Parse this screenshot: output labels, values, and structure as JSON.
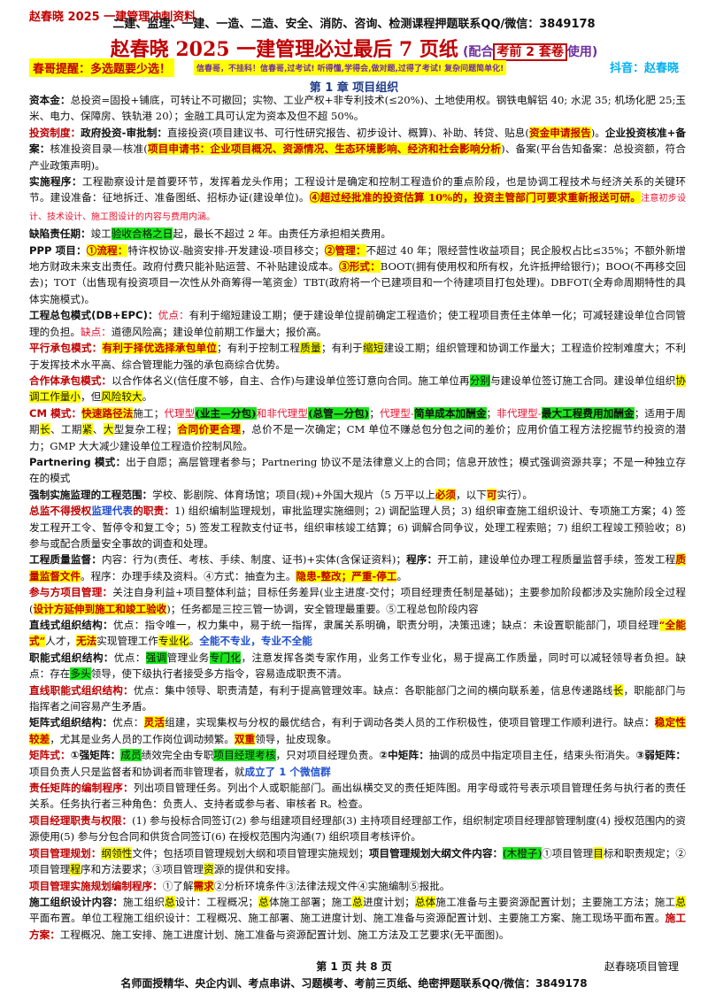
{
  "header": {
    "brand": "赵春晓 2025 一建管理冲刺资料",
    "banner": "二建、监理、一建、一造、二造、安全、消防、咨询、检测课程押题联系QQ/微信：3849178",
    "title": "赵春晓 2025 一建管理必过最后 7 页纸",
    "title_note_pre": "(配合",
    "title_note_box": "考前 2 套卷",
    "title_note_post": "使用)",
    "tip": "春哥提醒：多选题要少选！",
    "slogan": "信春哥，不挂科！信春哥,过考试! 听得懂,学得会,做对题,过得了考试! 复杂问题简单化!",
    "douyin": "抖音：赵春晓",
    "chapter": "第 1 章      项目组织"
  },
  "paras": [
    [
      [
        "k",
        "资本金："
      ],
      [
        "",
        "总投资=固投+铺底，可转让不可撤回；实物、工业产权+非专利技术(≤20%)、土地使用权。钢铁电解铝 40; 水泥 35; 机场化肥 25;玉米、电力、保障房、铁轨港 20）；金融工具可认定为资本及但不超 50%。"
      ]
    ],
    [
      [
        "kr",
        "投资制度："
      ],
      [
        "k",
        "政府投资-审批制："
      ],
      [
        "",
        "直接投资(项目建议书、可行性研究报告、初步设计、概算)、补助、转贷、贴息("
      ],
      [
        "ylr",
        "资金申请报告"
      ],
      [
        "",
        ")。"
      ],
      [
        "k",
        "企业投资核准+备案："
      ],
      [
        "",
        "核准投资目录—核准("
      ],
      [
        "ylr",
        "项目申请书：企业项目概况、资源情况、生态环境影响、经济和社会影响分析"
      ],
      [
        "",
        ")、备案(平台告知备案：总投资额，符合产业政策声明)。"
      ]
    ],
    [
      [
        "k",
        "实施程序："
      ],
      [
        "",
        "工程勘察设计是首要环节，发挥着龙头作用；工程设计是确定和控制工程造价的重点阶段，也是协调工程技术与经济关系的关键环节。建设准备：征地拆迁、准备图纸、招标办证(建设单位)。"
      ],
      [
        "ylr",
        "④超过经批准的投资估算 10%的，投资主管部门可要求重新报送可研。"
      ],
      [
        "mag",
        "注意初步设计、技术设计、施工图设计的内容与费用内涵。"
      ]
    ],
    [
      [
        "k",
        "缺陷责任期："
      ],
      [
        "",
        "竣工"
      ],
      [
        "gr",
        "验收合格之日"
      ],
      [
        "",
        "起，最长不超过 2 年。由责任方承担相关费用。"
      ]
    ],
    [
      [
        "k",
        "PPP 项目："
      ],
      [
        "ylr",
        "①流程："
      ],
      [
        "",
        "特许权协议-融资安排-开发建设-项目移交；"
      ],
      [
        "ylr",
        "②管理："
      ],
      [
        "",
        "不超过 40 年；限经营性收益项目；民企股权占比≤35%；不额外新增地方财政未来支出责任。政府付费只能补贴运营、不补贴建设成本。"
      ],
      [
        "ylr",
        "③形式："
      ],
      [
        "",
        "BOOT(拥有使用权和所有权，允许抵押给银行)；BOO(不再移交回去)；TOT（出售现有投资项目一次性从外商筹得一笔资金）TBT(政府将一个已建项目和一个待建项目打包处理)。DBFOT(全寿命周期特性的具体实施模式)。"
      ]
    ],
    [
      [
        "k",
        "工程总包模式(DB+EPC)："
      ],
      [
        "red",
        "优点："
      ],
      [
        "",
        "有利于缩短建设工期；便于建设单位提前确定工程造价；使工程项目责任主体单一化；可减轻建设单位合同管理的负担。"
      ],
      [
        "red",
        "缺点："
      ],
      [
        "",
        "道德风险高；建设单位前期工作量大；报价高。"
      ]
    ],
    [
      [
        "kr",
        "平行承包模式："
      ],
      [
        "ylr",
        "有利于择优选择承包单位"
      ],
      [
        "",
        "；有利于控制工程"
      ],
      [
        "yl",
        "质量"
      ],
      [
        "",
        "；有利于"
      ],
      [
        "yl",
        "缩短"
      ],
      [
        "",
        "建设工期；组织管理和协调工作量大；工程造价控制难度大；不利于发挥技术水平高、综合管理能力强的承包商综合优势。"
      ]
    ],
    [
      [
        "kr",
        "合作体承包模式："
      ],
      [
        "",
        "以合作体名义(信任度不够，自主、合作)与建设单位签订意向合同。施工单位再"
      ],
      [
        "gr",
        "分别"
      ],
      [
        "",
        "与建设单位签订施工合同。建设单位组织"
      ],
      [
        "yl",
        "协调工作量小"
      ],
      [
        "",
        "，但"
      ],
      [
        "yl",
        "风险较大"
      ],
      [
        "",
        "。"
      ]
    ],
    [
      [
        "kr",
        "CM 模式："
      ],
      [
        "ylr",
        "快速路径法"
      ],
      [
        "",
        "施工；"
      ],
      [
        "red",
        "代理型"
      ],
      [
        "grb",
        "(业主—分包)"
      ],
      [
        "red",
        "和非代理型"
      ],
      [
        "grb",
        "(总管—分包)"
      ],
      [
        "",
        "；"
      ],
      [
        "red",
        "代理型-"
      ],
      [
        "grb",
        "简单成本加酬金"
      ],
      [
        "",
        "；"
      ],
      [
        "red",
        "非代理型-"
      ],
      [
        "grb",
        "最大工程费用加酬金"
      ],
      [
        "",
        "；适用于周期"
      ],
      [
        "yl",
        "长"
      ],
      [
        "",
        "、工期"
      ],
      [
        "yl",
        "紧"
      ],
      [
        "",
        "、"
      ],
      [
        "yl",
        "大"
      ],
      [
        "",
        "型复杂工程；"
      ],
      [
        "ylr",
        "合同价更合理"
      ],
      [
        "",
        "，总价不是一次确定；CM 单位不赚总包分包之间的差价；应用价值工程方法挖掘节约投资的潜力；GMP 大大减少建设单位工程造价控制风险。"
      ]
    ],
    [
      [
        "k",
        "Partnering 模式："
      ],
      [
        "",
        "出于自愿；高层管理者参与；Partnering 协议不是法律意义上的合同；信息开放性；模式强调资源共享；不是一种独立存在的模式"
      ]
    ],
    [
      [
        "k",
        "强制实施监理的工程范围："
      ],
      [
        "",
        "学校、影剧院、体育场馆；项目(规)+外国大规片（5 万平以上"
      ],
      [
        "ylr",
        "必须"
      ],
      [
        "",
        "，以下"
      ],
      [
        "ylr",
        "可"
      ],
      [
        "",
        "实行）。"
      ]
    ],
    [
      [
        "kr",
        "总监不得授权"
      ],
      [
        "kb",
        "监理代表"
      ],
      [
        "kr",
        "的职责："
      ],
      [
        "",
        "1) 组织编制监理规划，审批监理实施细则；2) 调配监理人员；3) 组织审查施工组织设计、专项施工方案；4) 签发工程开工令、暂停令和复工令；5) 签发工程款支付证书，组织审核竣工结算；6) 调解合同争议，处理工程索赔；7) 组织工程竣工预验收；8) 参与或配合质量安全事故的调查和处理。"
      ]
    ],
    [
      [
        "k",
        "工程质量监督："
      ],
      [
        "",
        "内容：行为(责任、考核、手续、制度、证书)+实体(含保证资料)；"
      ],
      [
        "k",
        "程序："
      ],
      [
        "",
        "开工前，建设单位办理工程质量监督手续，签发工程"
      ],
      [
        "ylr",
        "质量监督文件"
      ],
      [
        "",
        "。程序：办理手续及资料。④方式：抽查为主。"
      ],
      [
        "ylr",
        "隐患-整改；严重-停工"
      ],
      [
        "",
        "。"
      ]
    ],
    [
      [
        "kr",
        "参与方项目管理："
      ],
      [
        "",
        "关注自身利益+项目整体利益；目标任务差异(业主进度-交付；项目经理责任制是基础)；主要参加阶段都涉及实施阶段全过程("
      ],
      [
        "ylr",
        "设计方延伸到施工和竣工验收"
      ],
      [
        "",
        ")；任务都是三控三管一协调，安全管理最重要。⑤工程总包阶段内容"
      ]
    ],
    [
      [
        "k",
        "直线式组织结构："
      ],
      [
        "",
        "优点：指令唯一，权力集中，易于统一指挥，隶属关系明确，职责分明，决策迅速；缺点：未设置职能部门，项目经理"
      ],
      [
        "ylr",
        "“全能式”"
      ],
      [
        "",
        "人才，"
      ],
      [
        "ylr",
        "无法"
      ],
      [
        "",
        "实现管理工作"
      ],
      [
        "yl",
        "专业化"
      ],
      [
        "",
        "。"
      ],
      [
        "kb",
        "全能不专业，专业不全能"
      ]
    ],
    [
      [
        "k",
        "职能式组织结构："
      ],
      [
        "",
        "优点："
      ],
      [
        "gr",
        "强调"
      ],
      [
        "",
        "管理业务"
      ],
      [
        "gr",
        "专门化"
      ],
      [
        "",
        "，注意发挥各类专家作用，业务工作专业化，易于提高工作质量，同时可以减轻领导者负担。缺点：存在"
      ],
      [
        "gr",
        "多头"
      ],
      [
        "",
        "领导，使下级执行者接受多方指令，容易造成职责不清。"
      ]
    ],
    [
      [
        "kr",
        "直线职能式组织结构："
      ],
      [
        "",
        "优点：集中领导、职责清楚，有利于提高管理效率。缺点：各职能部门之间的横向联系差，信息传递路线"
      ],
      [
        "yl",
        "长"
      ],
      [
        "",
        "，职能部门与指挥者之间容易产生矛盾。"
      ]
    ],
    [
      [
        "k",
        "矩阵式组织结构："
      ],
      [
        "",
        "优点："
      ],
      [
        "ylr",
        "灵活"
      ],
      [
        "",
        "组建，实现集权与分权的最优结合，有利于调动各类人员的工作积极性，使项目管理工作顺利进行。缺点："
      ],
      [
        "ylr",
        "稳定性较差"
      ],
      [
        "",
        "，尤其是业务人员的工作岗位调动频繁。"
      ],
      [
        "ylr",
        "双重"
      ],
      [
        "",
        "领导，扯皮现象。"
      ]
    ],
    [
      [
        "kr",
        "矩阵式："
      ],
      [
        "k",
        "①强矩阵："
      ],
      [
        "gr",
        "成员"
      ],
      [
        "",
        "绩效完全由专职"
      ],
      [
        "gr",
        "项目经理考核"
      ],
      [
        "",
        "，只对项目经理负责。"
      ],
      [
        "k",
        "②中矩阵："
      ],
      [
        "",
        "抽调的成员中指定项目主任，结束头衔消失。"
      ],
      [
        "k",
        "③弱矩阵："
      ],
      [
        "",
        "项目负责人只是监督者和协调者而非管理者，就"
      ],
      [
        "kb",
        "成立了 1 个微信群"
      ]
    ],
    [
      [
        "kr",
        "责任矩阵的编制程序："
      ],
      [
        "",
        "列出项目管理任务。列出个人或职能部门。画出纵横交叉的责任矩阵图。用字母或符号表示项目管理任务与执行者的责任关系。任务执行者三种角色：负责人、支持者或参与者、审核者 R。检查。"
      ]
    ],
    [
      [
        "kr",
        "项目经理职责与权限："
      ],
      [
        "",
        "(1) 参与投标合同签订(2) 参与组建项目经理部(3) 主持项目经理部工作，组织制定项目经理部管理制度(4) 授权范围内的资源使用(5) 参与分包合同和供货合同签订(6) 在授权范围内沟通(7) 组织项目考核评价。"
      ]
    ],
    [
      [
        "kr",
        "项目管理规划："
      ],
      [
        "yl",
        "纲领性"
      ],
      [
        "",
        "文件；包括项目管理规划大纲和项目管理实施规划；"
      ],
      [
        "k",
        "项目管理规划大纲文件内容："
      ],
      [
        "gr",
        "(木橙子)"
      ],
      [
        "",
        "①项目管理"
      ],
      [
        "yl",
        "目"
      ],
      [
        "",
        "标和职责规定；②项目管理"
      ],
      [
        "yl",
        "程"
      ],
      [
        "",
        "序和方法要求；③项目管理"
      ],
      [
        "yl",
        "资"
      ],
      [
        "",
        "源的提供和安排。"
      ]
    ],
    [
      [
        "kr",
        "项目管理实施规划编制程序："
      ],
      [
        "",
        "①了解"
      ],
      [
        "ylr",
        "需求"
      ],
      [
        "",
        "②分析环境条件③法律法规文件④实施编制⑤报批。"
      ]
    ],
    [
      [
        "k",
        "施工组织设计内容："
      ],
      [
        "",
        "施工组织"
      ],
      [
        "yl",
        "总"
      ],
      [
        "",
        "设计：工程概况；"
      ],
      [
        "yl",
        "总"
      ],
      [
        "",
        "体施工部署；施工"
      ],
      [
        "yl",
        "总"
      ],
      [
        "",
        "进度计划；"
      ],
      [
        "yl",
        "总体"
      ],
      [
        "",
        "施工准备与主要资源配置计划；主要施工方法；施工"
      ],
      [
        "yl",
        "总"
      ],
      [
        "",
        "平面布置。单位工程施工组织设计：工程概况、施工部署、施工进度计划、施工准备与资源配置计划、主要施工方案、施工现场平面布置。"
      ],
      [
        "kr",
        "施工方案："
      ],
      [
        "",
        "工程概况、施工安排、施工进度计划、施工准备与资源配置计划、施工方法及工艺要求(无平面图)。"
      ]
    ]
  ],
  "footer": {
    "page": "第 1 页 共 8 页",
    "right": "赵春晓项目管理",
    "bottom": "名师面授精华、央企内训、考点串讲、习题模考、考前三页纸、绝密押题联系QQ/微信：3849178"
  }
}
